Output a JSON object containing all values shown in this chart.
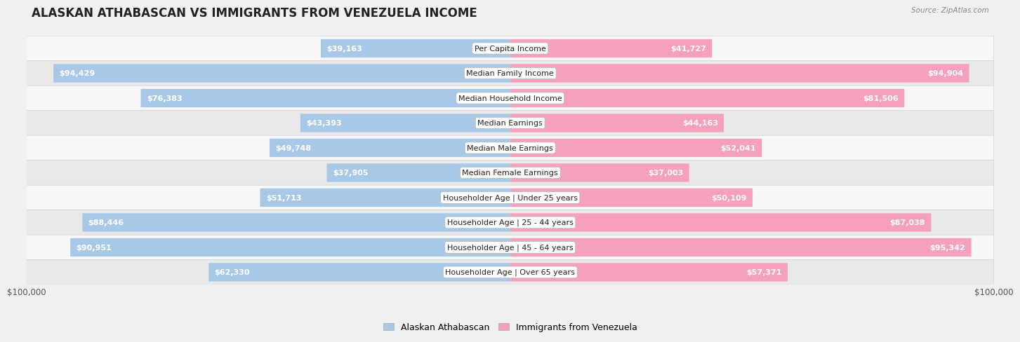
{
  "title": "ALASKAN ATHABASCAN VS IMMIGRANTS FROM VENEZUELA INCOME",
  "source": "Source: ZipAtlas.com",
  "categories": [
    "Per Capita Income",
    "Median Family Income",
    "Median Household Income",
    "Median Earnings",
    "Median Male Earnings",
    "Median Female Earnings",
    "Householder Age | Under 25 years",
    "Householder Age | 25 - 44 years",
    "Householder Age | 45 - 64 years",
    "Householder Age | Over 65 years"
  ],
  "left_values": [
    39163,
    94429,
    76383,
    43393,
    49748,
    37905,
    51713,
    88446,
    90951,
    62330
  ],
  "right_values": [
    41727,
    94904,
    81506,
    44163,
    52041,
    37003,
    50109,
    87038,
    95342,
    57371
  ],
  "left_labels": [
    "$39,163",
    "$94,429",
    "$76,383",
    "$43,393",
    "$49,748",
    "$37,905",
    "$51,713",
    "$88,446",
    "$90,951",
    "$62,330"
  ],
  "right_labels": [
    "$41,727",
    "$94,904",
    "$81,506",
    "$44,163",
    "$52,041",
    "$37,003",
    "$50,109",
    "$87,038",
    "$95,342",
    "$57,371"
  ],
  "max_value": 100000,
  "left_color": "#a8c8e8",
  "right_color": "#f5a0bc",
  "legend_left": "Alaskan Athabascan",
  "legend_right": "Immigrants from Venezuela",
  "bg_color": "#f0f0f0",
  "row_bg_light": "#ffffff",
  "row_bg_dark": "#e8e8e8",
  "label_color_inside": "#ffffff",
  "label_color_outside": "#555555",
  "title_fontsize": 12,
  "label_fontsize": 8,
  "category_fontsize": 8,
  "inside_threshold": 0.25
}
